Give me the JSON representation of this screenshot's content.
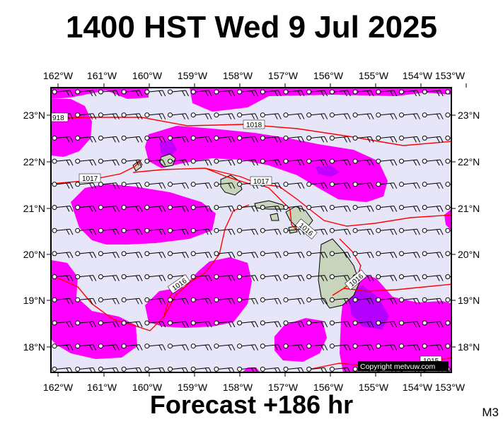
{
  "title": "1400 HST Wed 9 Jul 2025",
  "forecast_label": "Forecast +186 hr",
  "model_label": "M3",
  "copyright": "Copyright metvuw.com",
  "colors": {
    "background": "#e6e6f8",
    "precip_light": "#ff00ff",
    "precip_heavy": "#9900ff",
    "isobar": "#ff0000",
    "land": "#c8d4bc"
  },
  "axes": {
    "lon_labels": [
      "162°W",
      "161°W",
      "160°W",
      "159°W",
      "158°W",
      "157°W",
      "156°W",
      "155°W",
      "154°W",
      "153°W"
    ],
    "lat_labels": [
      "23°N",
      "22°N",
      "21°N",
      "20°N",
      "19°N",
      "18°N"
    ]
  },
  "isobar_labels": [
    {
      "value": "918"
    },
    {
      "value": "1018"
    },
    {
      "value": "1017"
    },
    {
      "value": "1017"
    },
    {
      "value": "1016"
    },
    {
      "value": "1016"
    },
    {
      "value": "1016"
    },
    {
      "value": "1015"
    }
  ],
  "islands": [
    "kauai",
    "niihau",
    "oahu",
    "molokai",
    "lanai",
    "maui",
    "kahoolawe",
    "hawaii"
  ],
  "wind_barb_rows": 13,
  "wind_barb_cols": 18
}
